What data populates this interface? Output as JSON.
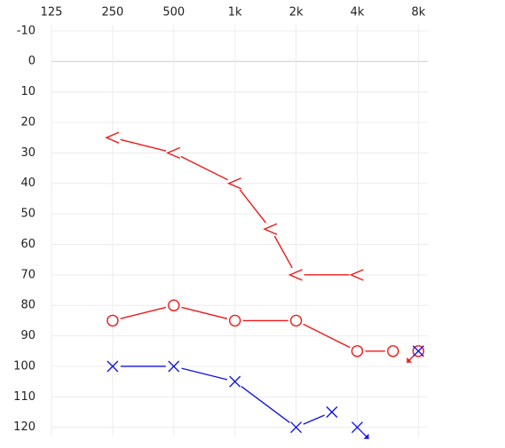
{
  "chart_data": {
    "type": "audiogram",
    "xscale": "log",
    "invert_y": true,
    "grid": true,
    "xlim": [
      125,
      8900
    ],
    "ylim": [
      -12,
      123
    ],
    "xticks": [
      125,
      250,
      500,
      {
        "value": 1000,
        "label": "1k"
      },
      {
        "value": 2000,
        "label": "2k"
      },
      {
        "value": 4000,
        "label": "4k"
      },
      {
        "value": 8000,
        "label": "8k"
      }
    ],
    "yticks": [
      -10,
      0,
      10,
      20,
      30,
      40,
      50,
      60,
      70,
      80,
      90,
      100,
      110,
      120
    ],
    "series": [
      {
        "marker": "<",
        "color": "#f01818",
        "x": [
          250,
          500,
          1000,
          1500,
          2000,
          4000
        ],
        "values": [
          25,
          30,
          40,
          55,
          70,
          70
        ],
        "no_response": [
          false,
          false,
          false,
          false,
          false,
          false
        ]
      },
      {
        "marker": "o",
        "color": "#f01818",
        "x": [
          250,
          500,
          1000,
          2000,
          4000,
          6000,
          8000
        ],
        "values": [
          85,
          80,
          85,
          85,
          95,
          95,
          95
        ],
        "no_response": [
          false,
          false,
          false,
          false,
          false,
          false,
          true
        ]
      },
      {
        "marker": "x",
        "color": "#1414e6",
        "x": [
          250,
          500,
          1000,
          2000,
          3000,
          4000,
          8000
        ],
        "values": [
          100,
          100,
          105,
          120,
          115,
          120,
          95
        ],
        "no_response": [
          false,
          false,
          false,
          false,
          false,
          true,
          false
        ]
      }
    ]
  }
}
